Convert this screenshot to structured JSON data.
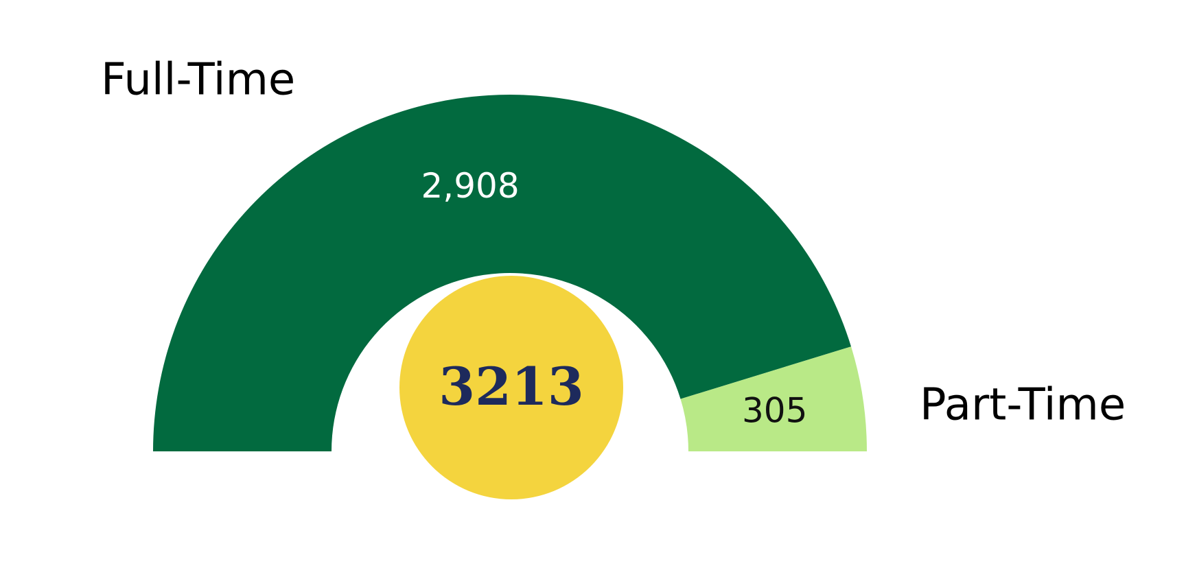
{
  "chart_data": {
    "type": "semi-donut",
    "categories": [
      "Full-Time",
      "Part-Time"
    ],
    "values": [
      2908,
      305
    ],
    "value_labels": [
      "2,908",
      "305"
    ],
    "colors": [
      "#026a3f",
      "#b9e987"
    ],
    "label_colors": [
      "#ffffff",
      "#111111"
    ],
    "total": 3213,
    "center_color": "#f4d43e",
    "total_color": "#1d2a5c"
  }
}
